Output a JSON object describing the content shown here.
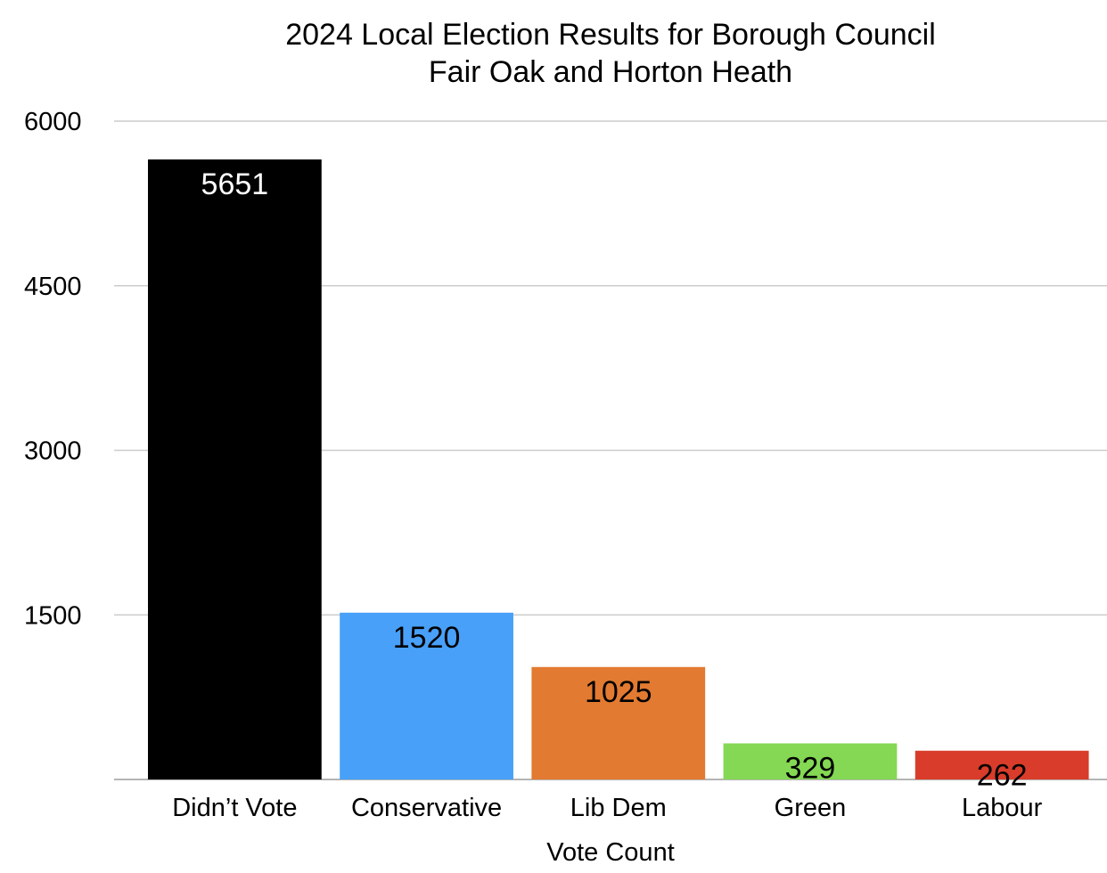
{
  "chart_data": {
    "type": "bar",
    "title": "2024 Local Election Results for Borough Council",
    "subtitle": "Fair Oak and Horton Heath",
    "xlabel": "Vote Count",
    "ylabel": "",
    "categories": [
      "Didn’t Vote",
      "Conservative",
      "Lib Dem",
      "Green",
      "Labour"
    ],
    "values": [
      5651,
      1520,
      1025,
      329,
      262
    ],
    "colors": [
      "#000000",
      "#48a0f8",
      "#e27a31",
      "#84d853",
      "#d93c2a"
    ],
    "label_colors": [
      "#ffffff",
      "#000000",
      "#000000",
      "#000000",
      "#000000"
    ],
    "ylim": [
      0,
      6000
    ],
    "yticks": [
      1500,
      3000,
      4500,
      6000
    ],
    "grid": true,
    "legend": "none"
  }
}
